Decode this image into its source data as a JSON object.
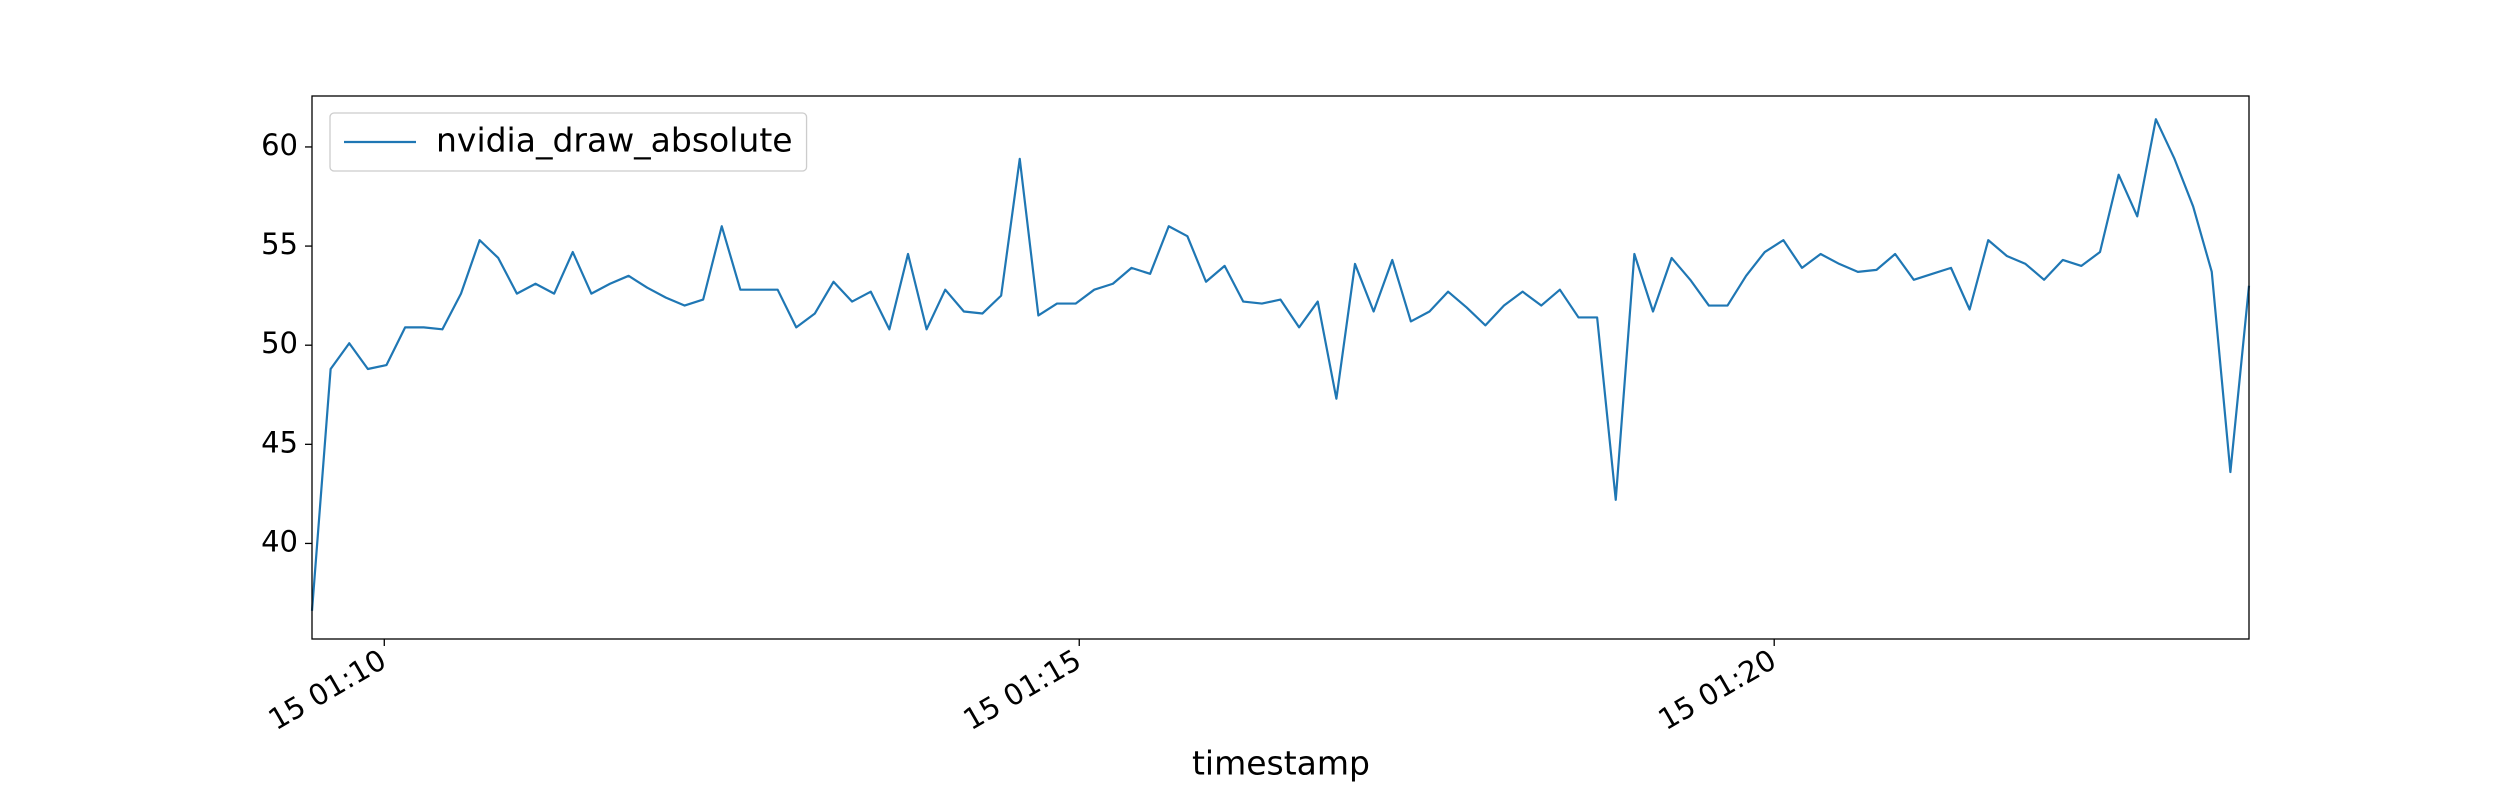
{
  "chart_data": {
    "type": "line",
    "xlabel": "timestamp",
    "x": [
      9.48,
      9.614,
      9.748,
      9.882,
      10.016,
      10.15,
      10.284,
      10.418,
      10.552,
      10.686,
      10.82,
      10.954,
      11.088,
      11.222,
      11.356,
      11.49,
      11.624,
      11.758,
      11.892,
      12.026,
      12.16,
      12.294,
      12.428,
      12.562,
      12.696,
      12.83,
      12.964,
      13.098,
      13.232,
      13.366,
      13.5,
      13.634,
      13.768,
      13.902,
      14.036,
      14.17,
      14.304,
      14.438,
      14.572,
      14.706,
      14.84,
      14.974,
      15.108,
      15.242,
      15.376,
      15.51,
      15.644,
      15.778,
      15.912,
      16.046,
      16.18,
      16.314,
      16.448,
      16.582,
      16.716,
      16.85,
      16.984,
      17.118,
      17.252,
      17.386,
      17.52,
      17.654,
      17.788,
      17.922,
      18.056,
      18.19,
      18.324,
      18.458,
      18.592,
      18.726,
      18.86,
      18.994,
      19.128,
      19.262,
      19.396,
      19.53,
      19.664,
      19.798,
      19.932,
      20.066,
      20.2,
      20.334,
      20.468,
      20.602,
      20.736,
      20.87,
      21.004,
      21.138,
      21.272,
      21.406,
      21.54,
      21.674,
      21.808,
      21.942,
      22.076,
      22.21,
      22.344,
      22.478,
      22.612,
      22.746,
      22.88,
      23.014,
      23.148,
      23.282,
      23.416
    ],
    "series": [
      {
        "name": "nvidia_draw_absolute",
        "color": "#1f77b4",
        "values": [
          36.6,
          48.8,
          50.1,
          48.8,
          49.0,
          50.9,
          50.9,
          50.8,
          52.6,
          55.3,
          54.4,
          52.6,
          53.1,
          52.6,
          54.7,
          52.6,
          53.1,
          53.5,
          52.9,
          52.4,
          52.0,
          52.3,
          56.0,
          52.8,
          52.8,
          52.8,
          50.9,
          51.6,
          53.2,
          52.2,
          52.7,
          50.8,
          54.6,
          50.8,
          52.8,
          51.7,
          51.6,
          52.5,
          59.4,
          51.5,
          52.1,
          52.1,
          52.8,
          53.1,
          53.9,
          53.6,
          56.0,
          55.5,
          53.2,
          54.0,
          52.2,
          52.1,
          52.3,
          50.9,
          52.2,
          47.3,
          54.1,
          51.7,
          54.3,
          51.2,
          51.7,
          52.7,
          51.9,
          51.0,
          52.0,
          52.7,
          52.0,
          52.8,
          51.4,
          51.4,
          42.2,
          54.6,
          51.7,
          54.4,
          53.3,
          52.0,
          52.0,
          53.5,
          54.7,
          55.3,
          53.9,
          54.6,
          54.1,
          53.7,
          53.8,
          54.6,
          53.3,
          53.6,
          53.9,
          51.8,
          55.3,
          54.5,
          54.1,
          53.3,
          54.3,
          54.0,
          54.7,
          58.6,
          56.5,
          61.4,
          59.4,
          57.0,
          53.7,
          43.6,
          53.0
        ]
      }
    ],
    "xlim": [
      9.48,
      23.416
    ],
    "xticks": [
      {
        "value": 10,
        "label": "15 01:10"
      },
      {
        "value": 15,
        "label": "15 01:15"
      },
      {
        "value": 20,
        "label": "15 01:20"
      }
    ],
    "ylim": [
      35.18,
      62.57
    ],
    "yticks": [
      40,
      45,
      50,
      55,
      60
    ],
    "legend": "upper left"
  }
}
